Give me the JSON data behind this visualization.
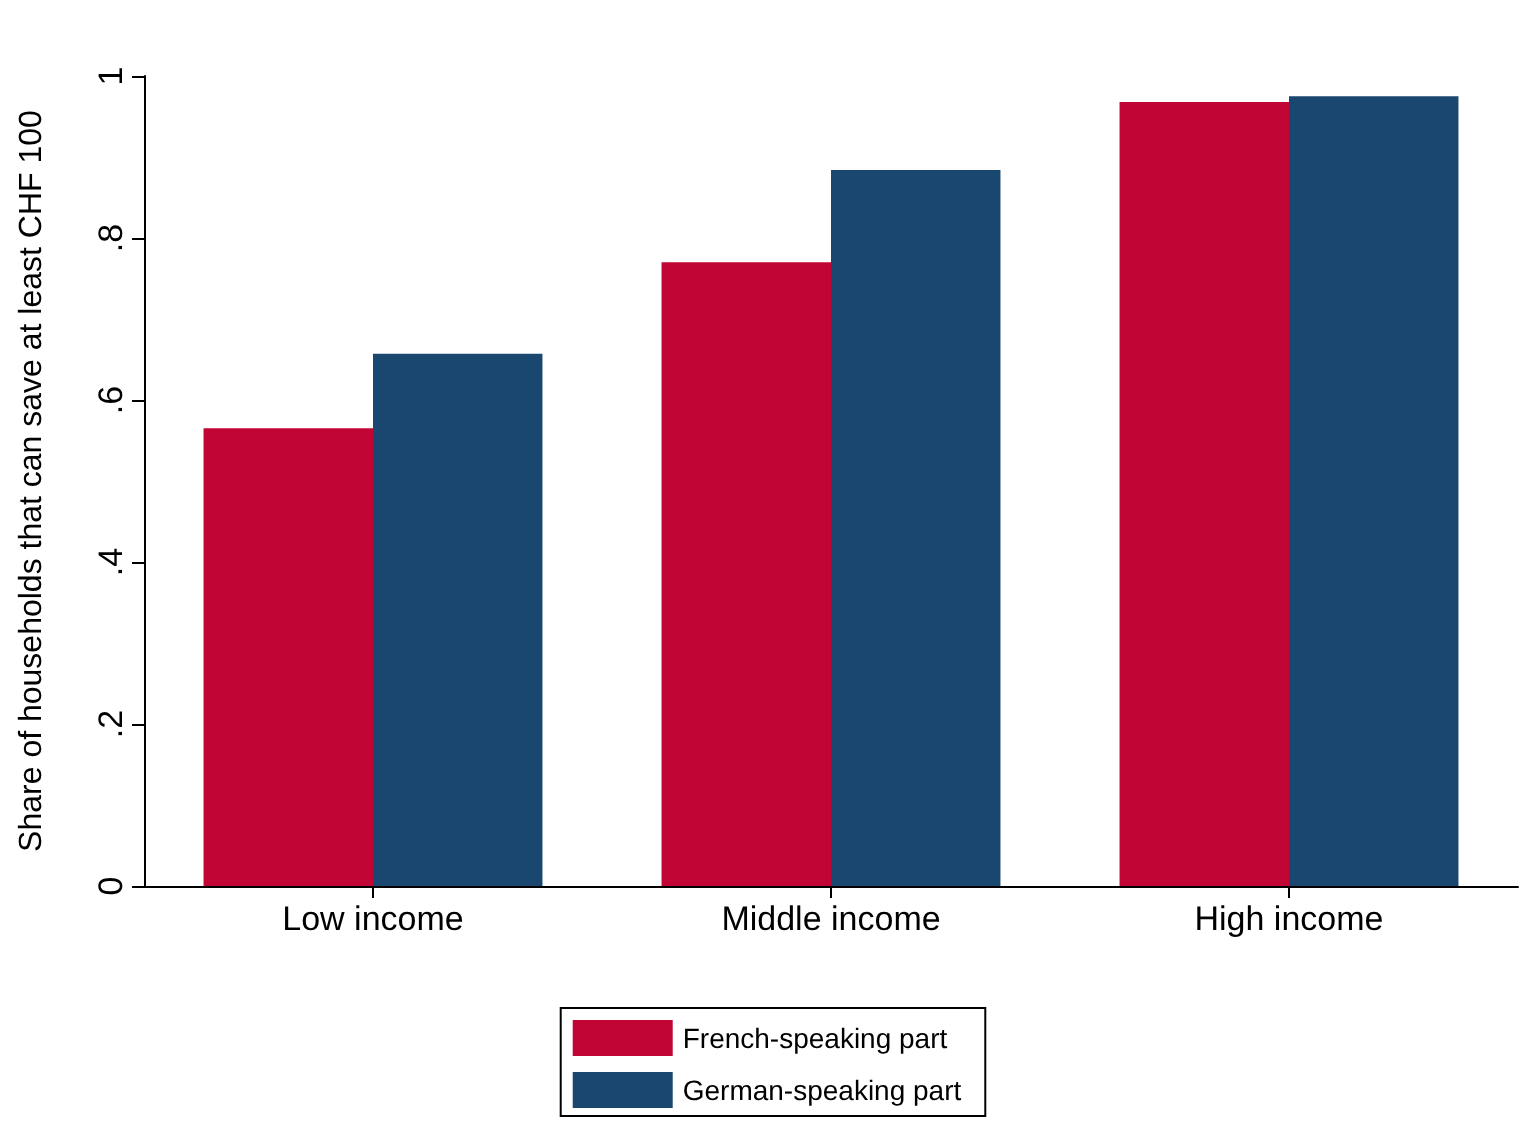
{
  "chart_data": {
    "type": "bar",
    "ylabel": "Share of households that can save at least CHF 100",
    "categories": [
      "Low income",
      "Middle income",
      "High income"
    ],
    "series": [
      {
        "name": "French-speaking part",
        "color": "#c10534",
        "values": [
          0.565,
          0.77,
          0.968
        ]
      },
      {
        "name": "German-speaking part",
        "color": "#1a476f",
        "values": [
          0.657,
          0.884,
          0.975
        ]
      }
    ],
    "ylim": [
      0,
      1
    ],
    "yticks": [
      {
        "value": 0,
        "label": "0"
      },
      {
        "value": 0.2,
        "label": ".2"
      },
      {
        "value": 0.4,
        "label": ".4"
      },
      {
        "value": 0.6,
        "label": ".6"
      },
      {
        "value": 0.8,
        "label": ".8"
      },
      {
        "value": 1,
        "label": "1"
      }
    ],
    "grid": false,
    "legend": "bottom"
  }
}
